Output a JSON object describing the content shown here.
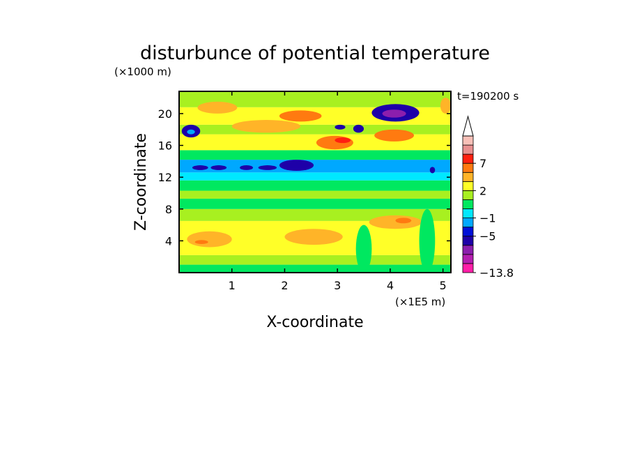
{
  "chart_data": {
    "type": "heatmap",
    "title": "disturbunce of potential temperature",
    "xlabel": "X-coordinate",
    "ylabel": "Z-coordinate",
    "x_unit": "(×1E5 m)",
    "y_unit": "(×1000 m)",
    "time_label": "t=190200 s",
    "xlim": [
      0,
      5.15
    ],
    "ylim": [
      0,
      22.8
    ],
    "x_ticks": [
      1,
      2,
      3,
      4,
      5
    ],
    "y_ticks": [
      4,
      8,
      12,
      16,
      20
    ],
    "x_tick_labels": [
      "1",
      "2",
      "3",
      "4",
      "5"
    ],
    "y_tick_labels": [
      "4",
      "8",
      "12",
      "16",
      "20"
    ],
    "colorbar": {
      "levels": [
        -13.8,
        -11,
        -9,
        -7,
        -5,
        -3,
        -1,
        0,
        1,
        2,
        3,
        5,
        7,
        9,
        11
      ],
      "labeled_levels": [
        "7",
        "2",
        "−1",
        "−5",
        "−13.8"
      ],
      "labeled_values": [
        7,
        2,
        -1,
        -5,
        -13.8
      ],
      "colors": [
        "#ff1ea8",
        "#b51eb0",
        "#8c1ead",
        "#1e00a8",
        "#0010d8",
        "#00a8ff",
        "#00e8ff",
        "#00e860",
        "#a8f020",
        "#ffff28",
        "#ffb428",
        "#ff7a10",
        "#ff2010",
        "#e89090",
        "#f8c0b8"
      ],
      "extend": "max"
    },
    "bands": [
      {
        "z": [
          0.0,
          1.0
        ],
        "value": 0.5
      },
      {
        "z": [
          1.0,
          2.2
        ],
        "value": 1.5
      },
      {
        "z": [
          2.2,
          6.5
        ],
        "value": 2.4
      },
      {
        "z": [
          6.5,
          8.0
        ],
        "value": 1.5
      },
      {
        "z": [
          8.0,
          9.3
        ],
        "value": 0.5
      },
      {
        "z": [
          9.3,
          10.3
        ],
        "value": 1.5
      },
      {
        "z": [
          10.3,
          11.6
        ],
        "value": 0.5
      },
      {
        "z": [
          11.6,
          12.6
        ],
        "value": -0.5
      },
      {
        "z": [
          12.6,
          14.2
        ],
        "value": -1.5
      },
      {
        "z": [
          14.2,
          15.4
        ],
        "value": 0.5
      },
      {
        "z": [
          15.4,
          17.4
        ],
        "value": 2.4
      },
      {
        "z": [
          17.4,
          18.6
        ],
        "value": 1.5
      },
      {
        "z": [
          18.6,
          20.8
        ],
        "value": 2.4
      },
      {
        "z": [
          20.8,
          22.8
        ],
        "value": 1.5
      }
    ],
    "features": [
      {
        "x": [
          0.15,
          1.0
        ],
        "z": [
          3.2,
          5.2
        ],
        "value": 4
      },
      {
        "x": [
          2.0,
          3.1
        ],
        "z": [
          3.5,
          5.5
        ],
        "value": 4
      },
      {
        "x": [
          3.6,
          4.6
        ],
        "z": [
          5.5,
          7.2
        ],
        "value": 4
      },
      {
        "x": [
          4.1,
          4.4
        ],
        "z": [
          6.2,
          6.9
        ],
        "value": 6
      },
      {
        "x": [
          0.3,
          0.55
        ],
        "z": [
          3.6,
          4.1
        ],
        "value": 6
      },
      {
        "x": [
          3.35,
          3.65
        ],
        "z": [
          0.0,
          6.0
        ],
        "value": 0.5
      },
      {
        "x": [
          4.55,
          4.85
        ],
        "z": [
          0.0,
          8.0
        ],
        "value": 0.5
      },
      {
        "x": [
          0.05,
          0.4
        ],
        "z": [
          17.0,
          18.6
        ],
        "value": -6
      },
      {
        "x": [
          0.15,
          0.3
        ],
        "z": [
          17.4,
          18.0
        ],
        "value": -3
      },
      {
        "x": [
          0.35,
          1.1
        ],
        "z": [
          20.0,
          21.5
        ],
        "value": 4
      },
      {
        "x": [
          1.0,
          2.3
        ],
        "z": [
          17.6,
          19.2
        ],
        "value": 4
      },
      {
        "x": [
          1.9,
          2.7
        ],
        "z": [
          19.0,
          20.4
        ],
        "value": 6
      },
      {
        "x": [
          2.6,
          3.3
        ],
        "z": [
          15.5,
          17.2
        ],
        "value": 6
      },
      {
        "x": [
          2.95,
          3.25
        ],
        "z": [
          16.3,
          17.0
        ],
        "value": 8
      },
      {
        "x": [
          3.7,
          4.45
        ],
        "z": [
          16.5,
          18.0
        ],
        "value": 5
      },
      {
        "x": [
          3.65,
          4.55
        ],
        "z": [
          19.0,
          21.2
        ],
        "value": -6
      },
      {
        "x": [
          3.85,
          4.3
        ],
        "z": [
          19.5,
          20.5
        ],
        "value": -8
      },
      {
        "x": [
          3.3,
          3.5
        ],
        "z": [
          17.6,
          18.6
        ],
        "value": -6
      },
      {
        "x": [
          2.95,
          3.15
        ],
        "z": [
          18.0,
          18.6
        ],
        "value": -6
      },
      {
        "x": [
          4.95,
          5.15
        ],
        "z": [
          20.0,
          22.0
        ],
        "value": 4
      },
      {
        "x": [
          0.1,
          4.9
        ],
        "z": [
          13.0,
          13.9
        ],
        "value": -1.5
      },
      {
        "x": [
          0.25,
          0.55
        ],
        "z": [
          12.9,
          13.5
        ],
        "value": -6
      },
      {
        "x": [
          0.6,
          0.9
        ],
        "z": [
          12.9,
          13.5
        ],
        "value": -6
      },
      {
        "x": [
          1.15,
          1.4
        ],
        "z": [
          12.9,
          13.5
        ],
        "value": -6
      },
      {
        "x": [
          1.5,
          1.85
        ],
        "z": [
          12.9,
          13.5
        ],
        "value": -6
      },
      {
        "x": [
          1.9,
          2.55
        ],
        "z": [
          12.8,
          14.2
        ],
        "value": -6
      },
      {
        "x": [
          4.75,
          4.85
        ],
        "z": [
          12.5,
          13.3
        ],
        "value": -6
      }
    ]
  }
}
